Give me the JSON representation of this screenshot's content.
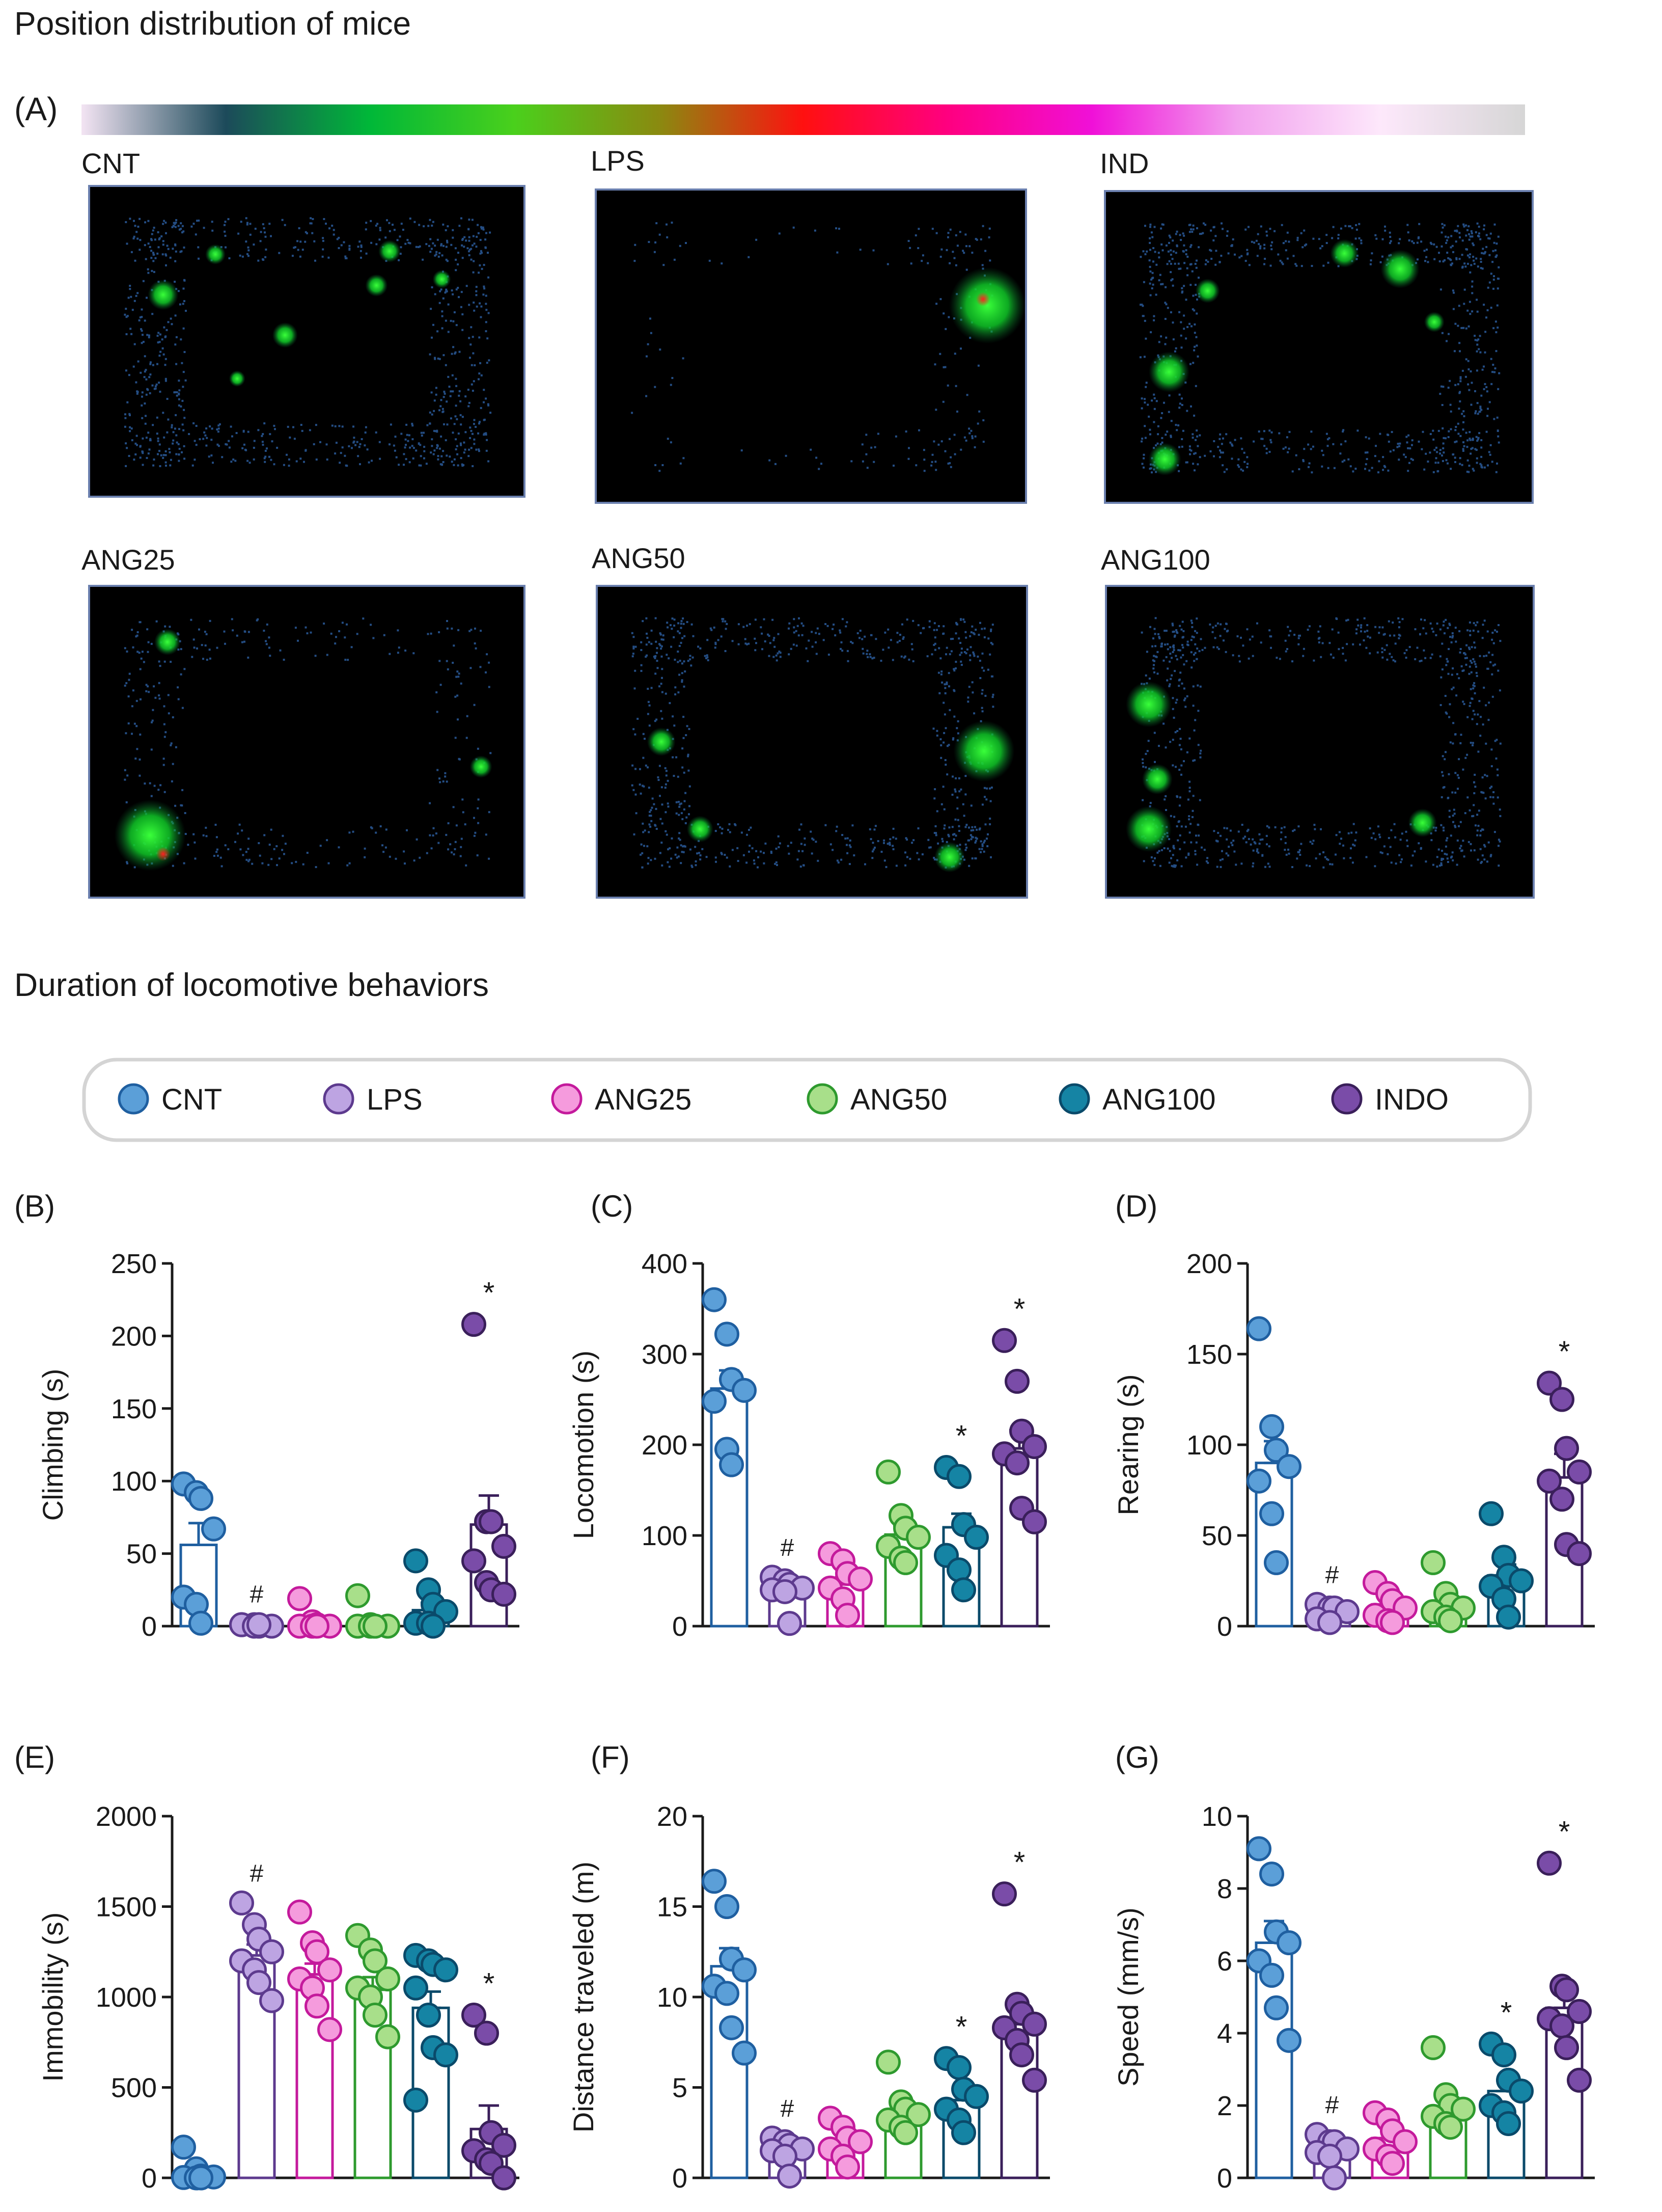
{
  "section_a": {
    "title": "Position distribution of mice",
    "panel_label": "(A)",
    "colorbar_colors": [
      "#f3e4f3",
      "#1c4a5a",
      "#00b838",
      "#4ad01c",
      "#8a8a10",
      "#ff1010",
      "#ff0080",
      "#f010d8",
      "#f2a0ee",
      "#fde8fb",
      "#d6d6d6"
    ],
    "heatmaps": [
      {
        "label": "CNT"
      },
      {
        "label": "LPS"
      },
      {
        "label": "IND"
      },
      {
        "label": "ANG25"
      },
      {
        "label": "ANG50"
      },
      {
        "label": "ANG100"
      }
    ]
  },
  "section_b": {
    "title": "Duration of locomotive behaviors",
    "legend": [
      {
        "label": "CNT",
        "color": "#1f5fa0",
        "fill": "#5b9fd8"
      },
      {
        "label": "LPS",
        "color": "#5d3a8e",
        "fill": "#bda4e2"
      },
      {
        "label": "ANG25",
        "color": "#c41a9c",
        "fill": "#f59bdd"
      },
      {
        "label": "ANG50",
        "color": "#2e9a2e",
        "fill": "#a8df8a"
      },
      {
        "label": "ANG100",
        "color": "#0a4a6a",
        "fill": "#1584a4"
      },
      {
        "label": "INDO",
        "color": "#3a1f5a",
        "fill": "#7a4ca8"
      }
    ]
  },
  "chart_data": [
    {
      "type": "bar",
      "panel": "(B)",
      "ylabel": "Climbing (s)",
      "ylim": [
        0,
        250
      ],
      "yticks": [
        "0",
        "50",
        "100",
        "150",
        "200",
        "250"
      ],
      "categories": [
        "CNT",
        "LPS",
        "ANG25",
        "ANG50",
        "ANG100",
        "INDO"
      ],
      "means": [
        56,
        1,
        2,
        2,
        11,
        70
      ],
      "sem": [
        15,
        0.5,
        2,
        2,
        5,
        20
      ],
      "points": [
        [
          98,
          92,
          88,
          67,
          20,
          15,
          2
        ],
        [
          1,
          1,
          0,
          0,
          1,
          0,
          1
        ],
        [
          19,
          3,
          1,
          0,
          0,
          0,
          0
        ],
        [
          21,
          1,
          0,
          0,
          0,
          0,
          0
        ],
        [
          45,
          25,
          15,
          10,
          2,
          2,
          0
        ],
        [
          208,
          72,
          72,
          55,
          45,
          30,
          25,
          22
        ]
      ],
      "marks": [
        "",
        "#",
        "",
        "",
        "",
        "*"
      ]
    },
    {
      "type": "bar",
      "panel": "(C)",
      "ylabel": "Locomotion (s)",
      "ylim": [
        0,
        400
      ],
      "yticks": [
        "0",
        "100",
        "200",
        "300",
        "400"
      ],
      "categories": [
        "CNT",
        "LPS",
        "ANG25",
        "ANG50",
        "ANG100",
        "INDO"
      ],
      "means": [
        262,
        48,
        46,
        101,
        109,
        196
      ],
      "sem": [
        20,
        5,
        8,
        10,
        15,
        20
      ],
      "points": [
        [
          360,
          322,
          272,
          260,
          248,
          195,
          178
        ],
        [
          54,
          50,
          46,
          42,
          40,
          38,
          3
        ],
        [
          80,
          72,
          58,
          52,
          42,
          30,
          12
        ],
        [
          170,
          122,
          108,
          98,
          88,
          75,
          70
        ],
        [
          175,
          165,
          112,
          98,
          78,
          62,
          40
        ],
        [
          315,
          270,
          215,
          198,
          190,
          180,
          130,
          115
        ]
      ],
      "marks": [
        "",
        "#",
        "",
        "",
        "*",
        "*"
      ]
    },
    {
      "type": "bar",
      "panel": "(D)",
      "ylabel": "Rearing (s)",
      "ylim": [
        0,
        200
      ],
      "yticks": [
        "0",
        "50",
        "100",
        "150",
        "200"
      ],
      "categories": [
        "CNT",
        "LPS",
        "ANG25",
        "ANG50",
        "ANG100",
        "INDO"
      ],
      "means": [
        90,
        8,
        12,
        12,
        28,
        82
      ],
      "sem": [
        12,
        2,
        3,
        4,
        6,
        13
      ],
      "points": [
        [
          164,
          110,
          97,
          88,
          80,
          62,
          35
        ],
        [
          12,
          10,
          10,
          8,
          4,
          2
        ],
        [
          24,
          18,
          14,
          10,
          6,
          3,
          2
        ],
        [
          35,
          18,
          12,
          10,
          8,
          5,
          3
        ],
        [
          62,
          38,
          28,
          25,
          22,
          15,
          5
        ],
        [
          134,
          125,
          98,
          85,
          80,
          70,
          45,
          40
        ]
      ],
      "marks": [
        "",
        "#",
        "",
        "",
        "",
        "*"
      ]
    },
    {
      "type": "bar",
      "panel": "(E)",
      "ylabel": "Immobility (s)",
      "ylim": [
        0,
        2000
      ],
      "yticks": [
        "0",
        "500",
        "1000",
        "1500",
        "2000"
      ],
      "categories": [
        "CNT",
        "LPS",
        "ANG25",
        "ANG50",
        "ANG100",
        "INDO"
      ],
      "means": [
        25,
        1230,
        1125,
        1040,
        940,
        270
      ],
      "sem": [
        20,
        60,
        60,
        70,
        90,
        130
      ],
      "points": [
        [
          170,
          50,
          10,
          5,
          2,
          0,
          0
        ],
        [
          1520,
          1400,
          1320,
          1250,
          1200,
          1150,
          1080,
          980
        ],
        [
          1470,
          1300,
          1250,
          1150,
          1100,
          1050,
          950,
          820
        ],
        [
          1340,
          1260,
          1200,
          1100,
          1050,
          1000,
          900,
          780
        ],
        [
          1230,
          1200,
          1180,
          1150,
          1050,
          900,
          720,
          680,
          430
        ],
        [
          900,
          800,
          250,
          180,
          150,
          100,
          80,
          0
        ]
      ],
      "marks": [
        "",
        "#",
        "",
        "",
        "",
        "*"
      ]
    },
    {
      "type": "bar",
      "panel": "(F)",
      "ylabel": "Distance traveled (m)",
      "ylim": [
        0,
        20
      ],
      "yticks": [
        "0",
        "5",
        "10",
        "15",
        "20"
      ],
      "categories": [
        "CNT",
        "LPS",
        "ANG25",
        "ANG50",
        "ANG100",
        "INDO"
      ],
      "means": [
        11.7,
        1.8,
        2.0,
        3.5,
        4.3,
        8.5
      ],
      "sem": [
        1.0,
        0.3,
        0.4,
        0.4,
        0.6,
        1.1
      ],
      "points": [
        [
          16.4,
          15.0,
          12.1,
          11.5,
          10.6,
          10.2,
          8.3,
          6.9
        ],
        [
          2.2,
          2.0,
          1.8,
          1.6,
          1.5,
          1.2,
          0.1
        ],
        [
          3.3,
          2.8,
          2.2,
          2.0,
          1.6,
          1.2,
          0.6
        ],
        [
          6.4,
          4.2,
          3.8,
          3.5,
          3.2,
          2.8,
          2.5
        ],
        [
          6.6,
          6.1,
          4.9,
          4.5,
          3.8,
          3.2,
          2.5
        ],
        [
          15.7,
          9.6,
          9.1,
          8.5,
          8.3,
          7.6,
          6.8,
          5.4
        ]
      ],
      "marks": [
        "",
        "#",
        "",
        "",
        "*",
        "*"
      ]
    },
    {
      "type": "bar",
      "panel": "(G)",
      "ylabel": "Speed (mm/s)",
      "ylim": [
        0,
        10
      ],
      "yticks": [
        "0",
        "2",
        "4",
        "6",
        "8",
        "10"
      ],
      "categories": [
        "CNT",
        "LPS",
        "ANG25",
        "ANG50",
        "ANG100",
        "INDO"
      ],
      "means": [
        6.5,
        0.9,
        1.1,
        1.9,
        2.4,
        4.7
      ],
      "sem": [
        0.6,
        0.2,
        0.2,
        0.3,
        0.3,
        0.6
      ],
      "points": [
        [
          9.1,
          8.4,
          6.8,
          6.5,
          6.0,
          5.6,
          4.7,
          3.8
        ],
        [
          1.2,
          1.0,
          1.0,
          0.8,
          0.7,
          0.6,
          0.0
        ],
        [
          1.8,
          1.6,
          1.3,
          1.0,
          0.8,
          0.6,
          0.4
        ],
        [
          3.6,
          2.3,
          2.0,
          1.9,
          1.7,
          1.5,
          1.4
        ],
        [
          3.7,
          3.4,
          2.7,
          2.4,
          2.0,
          1.8,
          1.5
        ],
        [
          8.7,
          5.3,
          5.2,
          4.6,
          4.4,
          4.2,
          3.6,
          2.7
        ]
      ],
      "marks": [
        "",
        "#",
        "",
        "",
        "*",
        "*"
      ]
    }
  ]
}
